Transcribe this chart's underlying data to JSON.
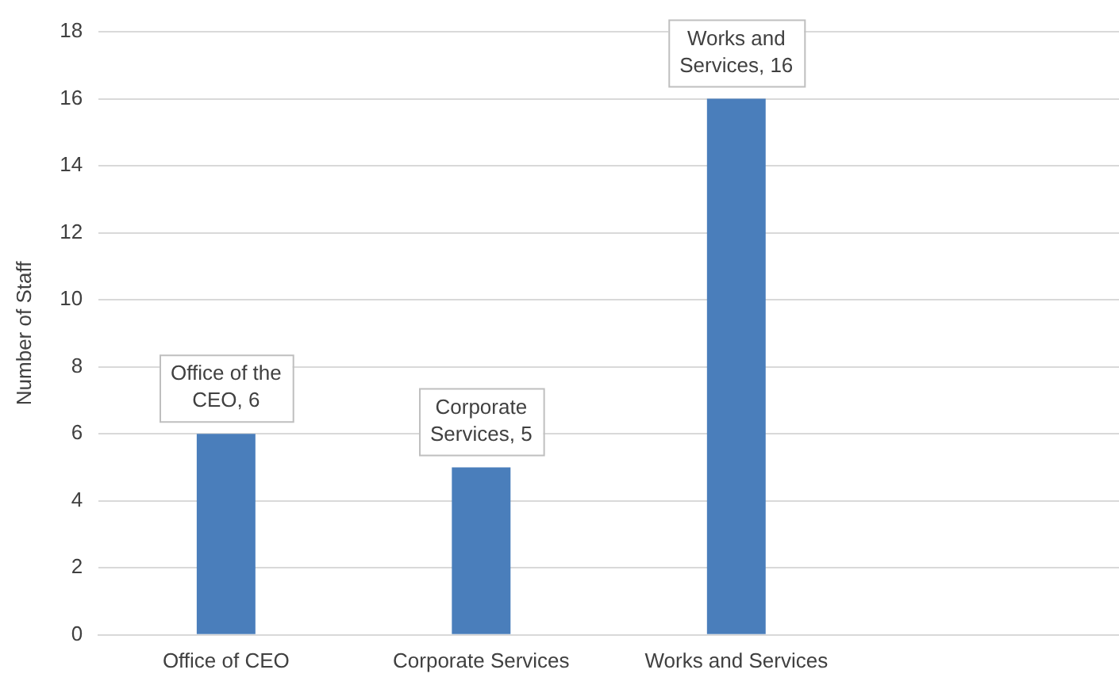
{
  "chart_data": {
    "type": "bar",
    "ylabel": "Number of Staff",
    "categories": [
      "Office of CEO",
      "Corporate Services",
      "Works and Services",
      null
    ],
    "values": [
      6,
      5,
      16,
      null
    ],
    "value_labels": [
      "Office of the CEO, 6",
      "Corporate Services, 5",
      "Works and Services, 16",
      null
    ],
    "color": "#4a7ebb",
    "ylim": [
      0,
      18
    ],
    "yticks": [
      0,
      2,
      4,
      6,
      8,
      10,
      12,
      14,
      16,
      18
    ],
    "grid": "y",
    "legend": false
  }
}
